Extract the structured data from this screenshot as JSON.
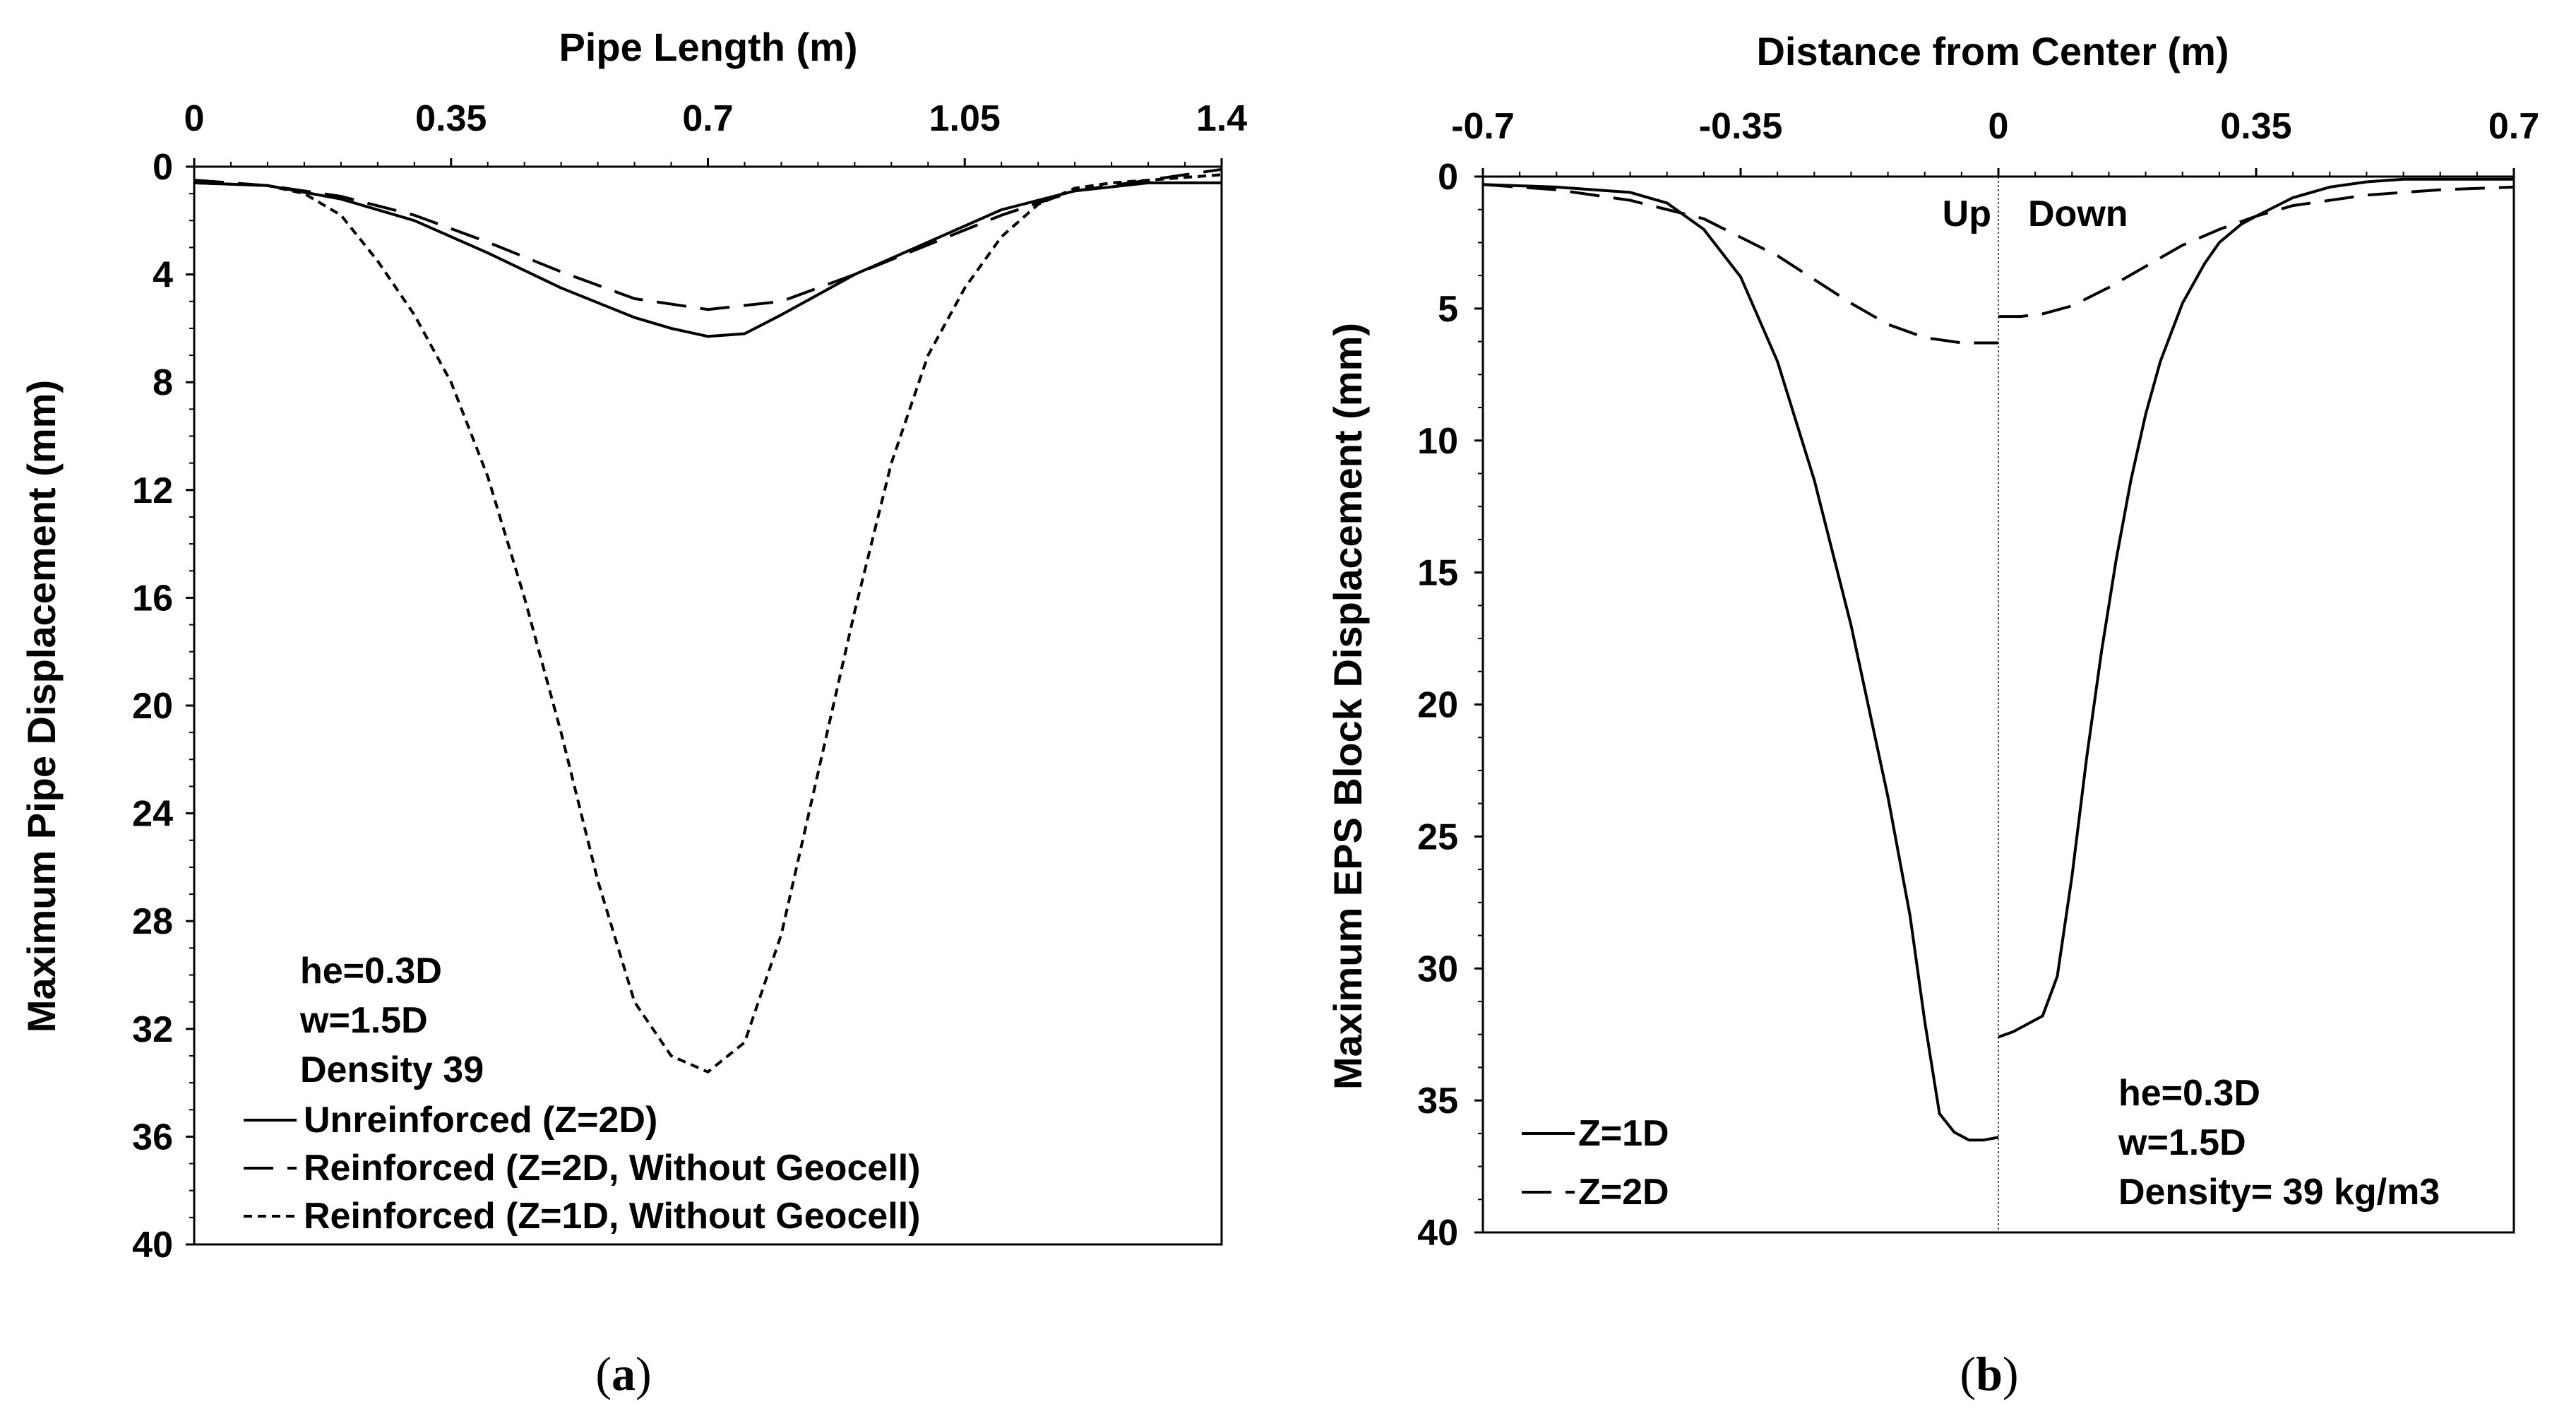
{
  "chart_data": [
    {
      "id": "a",
      "type": "line",
      "caption": {
        "open": "(",
        "letter": "a",
        "close": ")"
      },
      "xlabel": "Pipe Length (m)",
      "ylabel": "Maximum Pipe Displacement (mm)",
      "xlim": [
        0,
        1.4
      ],
      "ylim": [
        0,
        40
      ],
      "y_inverted": true,
      "x_axis_position": "top",
      "xticks": [
        "0",
        "0.35",
        "0.7",
        "1.05",
        "1.4"
      ],
      "yticks": [
        "0",
        "4",
        "8",
        "12",
        "16",
        "20",
        "24",
        "28",
        "32",
        "36",
        "40"
      ],
      "annotations": [
        "he=0.3D",
        "w=1.5D",
        "Density 39"
      ],
      "legend_position": "bottom-left",
      "series": [
        {
          "name": "Unreinforced (Z=2D)",
          "dash": "solid",
          "x": [
            0,
            0.1,
            0.2,
            0.3,
            0.4,
            0.5,
            0.6,
            0.65,
            0.7,
            0.75,
            0.8,
            0.9,
            1.0,
            1.1,
            1.2,
            1.3,
            1.4
          ],
          "y": [
            0.6,
            0.7,
            1.2,
            2.0,
            3.2,
            4.5,
            5.6,
            6.0,
            6.3,
            6.2,
            5.5,
            4.0,
            2.8,
            1.6,
            0.9,
            0.6,
            0.6
          ]
        },
        {
          "name": "Reinforced (Z=2D, Without Geocell)",
          "dash": "long",
          "x": [
            0,
            0.1,
            0.2,
            0.3,
            0.4,
            0.5,
            0.6,
            0.7,
            0.8,
            0.9,
            1.0,
            1.1,
            1.2,
            1.3,
            1.35,
            1.4
          ],
          "y": [
            0.5,
            0.7,
            1.1,
            1.8,
            2.8,
            3.9,
            4.9,
            5.3,
            5.0,
            4.0,
            2.9,
            1.8,
            0.9,
            0.5,
            0.3,
            0.1
          ]
        },
        {
          "name": "Reinforced (Z=1D, Without Geocell)",
          "dash": "short",
          "x": [
            0,
            0.1,
            0.15,
            0.2,
            0.25,
            0.3,
            0.35,
            0.4,
            0.45,
            0.5,
            0.55,
            0.6,
            0.65,
            0.7,
            0.75,
            0.8,
            0.85,
            0.9,
            0.95,
            1.0,
            1.05,
            1.1,
            1.15,
            1.2,
            1.25,
            1.3,
            1.35,
            1.4
          ],
          "y": [
            0.6,
            0.7,
            1.0,
            1.8,
            3.5,
            5.5,
            8.0,
            11.5,
            16.0,
            21.0,
            26.5,
            31.0,
            33.0,
            33.6,
            32.5,
            28.5,
            22.5,
            16.5,
            11.0,
            7.0,
            4.5,
            2.6,
            1.4,
            0.8,
            0.6,
            0.5,
            0.4,
            0.3
          ]
        }
      ]
    },
    {
      "id": "b",
      "type": "line",
      "caption": {
        "open": "(",
        "letter": "b",
        "close": ")"
      },
      "xlabel": "Distance from Center (m)",
      "ylabel": "Maximum EPS Block Displacement (mm)",
      "xlim": [
        -0.7,
        0.7
      ],
      "ylim": [
        0,
        40
      ],
      "y_inverted": true,
      "x_axis_position": "top",
      "xticks": [
        "-0.7",
        "-0.35",
        "0",
        "0.35",
        "0.7"
      ],
      "yticks": [
        "0",
        "5",
        "10",
        "15",
        "20",
        "25",
        "30",
        "35",
        "40"
      ],
      "region_labels": [
        "Up",
        "Down"
      ],
      "annotations": [
        "he=0.3D",
        "w=1.5D",
        "Density= 39 kg/m3"
      ],
      "legend_position": "bottom-left",
      "series": [
        {
          "name": "Z=1D",
          "dash": "solid",
          "segments": [
            {
              "x": [
                -0.7,
                -0.6,
                -0.5,
                -0.45,
                -0.4,
                -0.35,
                -0.3,
                -0.25,
                -0.2,
                -0.15,
                -0.12,
                -0.1,
                -0.08,
                -0.06,
                -0.04,
                -0.02,
                0
              ],
              "y": [
                0.3,
                0.4,
                0.6,
                1.0,
                2.0,
                3.8,
                7.0,
                11.5,
                17.0,
                23.5,
                28.0,
                32.0,
                35.5,
                36.2,
                36.5,
                36.5,
                36.4
              ]
            },
            {
              "x": [
                0,
                0.02,
                0.04,
                0.06,
                0.08,
                0.1,
                0.12,
                0.14,
                0.16,
                0.18,
                0.2,
                0.22,
                0.25,
                0.28,
                0.3,
                0.33,
                0.35,
                0.4,
                0.45,
                0.5,
                0.55,
                0.6,
                0.7
              ],
              "y": [
                32.6,
                32.4,
                32.1,
                31.8,
                30.3,
                26.5,
                22.0,
                18.0,
                14.5,
                11.5,
                9.0,
                7.0,
                4.8,
                3.3,
                2.5,
                1.8,
                1.5,
                0.8,
                0.4,
                0.2,
                0.1,
                0.1,
                0.1
              ]
            }
          ]
        },
        {
          "name": "Z=2D",
          "dash": "long",
          "segments": [
            {
              "x": [
                -0.7,
                -0.6,
                -0.5,
                -0.4,
                -0.35,
                -0.3,
                -0.25,
                -0.2,
                -0.15,
                -0.1,
                -0.05,
                -0.02,
                0
              ],
              "y": [
                0.3,
                0.5,
                0.9,
                1.6,
                2.3,
                3.0,
                3.9,
                4.8,
                5.6,
                6.1,
                6.3,
                6.3,
                6.3
              ]
            },
            {
              "x": [
                0,
                0.03,
                0.06,
                0.1,
                0.15,
                0.2,
                0.25,
                0.3,
                0.35,
                0.4,
                0.5,
                0.6,
                0.7
              ],
              "y": [
                5.3,
                5.3,
                5.2,
                4.9,
                4.2,
                3.4,
                2.6,
                2.0,
                1.5,
                1.1,
                0.7,
                0.5,
                0.4
              ]
            }
          ]
        }
      ]
    }
  ]
}
